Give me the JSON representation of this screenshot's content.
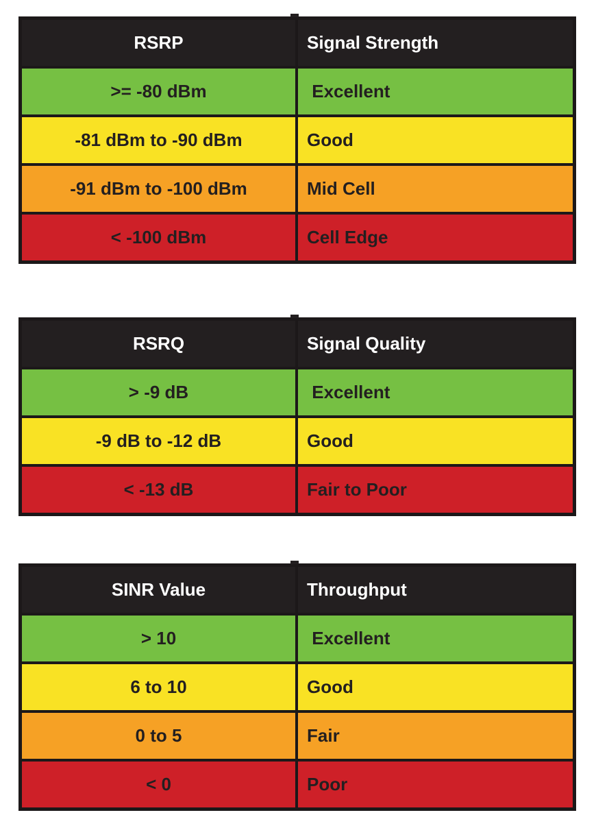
{
  "colors": {
    "header_bg": "#231F20",
    "header_text": "#FFFFFF",
    "cell_text": "#231F20",
    "border": "#1C1819",
    "green": "#76C043",
    "yellow": "#F9E224",
    "orange": "#F6A125",
    "red": "#CE2028"
  },
  "tables": [
    {
      "id": "rsrp",
      "headers": [
        "RSRP",
        "Signal Strength"
      ],
      "rows": [
        {
          "range": ">= -80 dBm",
          "label": " Excellent",
          "level": "green"
        },
        {
          "range": "-81 dBm to -90 dBm",
          "label": "Good",
          "level": "yellow"
        },
        {
          "range": "-91 dBm to -100 dBm",
          "label": "Mid Cell",
          "level": "orange"
        },
        {
          "range": "< -100 dBm",
          "label": "Cell Edge",
          "level": "red"
        }
      ]
    },
    {
      "id": "rsrq",
      "headers": [
        "RSRQ",
        "Signal Quality"
      ],
      "rows": [
        {
          "range": "> -9 dB",
          "label": " Excellent",
          "level": "green"
        },
        {
          "range": "-9 dB to -12 dB",
          "label": "Good",
          "level": "yellow"
        },
        {
          "range": "< -13 dB",
          "label": "Fair to Poor",
          "level": "red"
        }
      ]
    },
    {
      "id": "sinr",
      "headers": [
        "SINR Value",
        "Throughput"
      ],
      "rows": [
        {
          "range": "> 10",
          "label": " Excellent",
          "level": "green"
        },
        {
          "range": "6 to 10",
          "label": "Good",
          "level": "yellow"
        },
        {
          "range": "0 to 5",
          "label": "Fair",
          "level": "orange"
        },
        {
          "range": "< 0",
          "label": "Poor",
          "level": "red"
        }
      ]
    }
  ]
}
